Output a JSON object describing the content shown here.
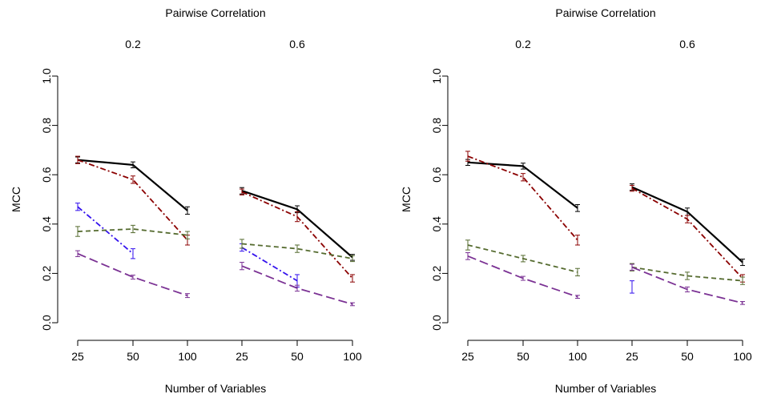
{
  "figure": {
    "panel_title": "Pairwise Correlation",
    "ylabel": "MCC",
    "xlabel": "Number of Variables"
  },
  "chart_data": [
    {
      "type": "line",
      "title": "Pairwise Correlation",
      "xlabel": "Number of Variables",
      "ylabel": "MCC",
      "ylim": [
        0,
        1
      ],
      "yticks": [
        "0.0",
        "0.2",
        "0.4",
        "0.6",
        "0.8",
        "1.0"
      ],
      "grid": false,
      "groups": [
        {
          "label": "0.2",
          "x": [
            "25",
            "50",
            "100"
          ]
        },
        {
          "label": "0.6",
          "x": [
            "25",
            "50",
            "100"
          ]
        }
      ],
      "series": [
        {
          "color": "#000000",
          "dash": "solid",
          "width": 2.2,
          "values": [
            [
              0.66,
              0.64,
              0.455
            ],
            [
              0.535,
              0.46,
              0.265
            ]
          ],
          "err": [
            [
              0.012,
              0.012,
              0.015
            ],
            [
              0.013,
              0.014,
              0.012
            ]
          ]
        },
        {
          "color": "#8b0000",
          "dash": "dashdot",
          "width": 1.8,
          "values": [
            [
              0.66,
              0.58,
              0.335
            ],
            [
              0.53,
              0.43,
              0.18
            ]
          ],
          "err": [
            [
              0.015,
              0.015,
              0.02
            ],
            [
              0.012,
              0.02,
              0.015
            ]
          ]
        },
        {
          "color": "#3311ee",
          "dash": "dashdot",
          "width": 1.8,
          "values": [
            [
              0.47,
              0.28,
              null
            ],
            [
              0.305,
              0.17,
              null
            ]
          ],
          "err": [
            [
              0.015,
              0.02,
              null
            ],
            [
              0.015,
              0.025,
              null
            ]
          ]
        },
        {
          "color": "#556b2f",
          "dash": "dashed",
          "width": 1.8,
          "values": [
            [
              0.37,
              0.38,
              0.355
            ],
            [
              0.32,
              0.3,
              0.26
            ]
          ],
          "err": [
            [
              0.02,
              0.015,
              0.015
            ],
            [
              0.018,
              0.015,
              0.012
            ]
          ]
        },
        {
          "color": "#7b3294",
          "dash": "longdash",
          "width": 1.8,
          "values": [
            [
              0.28,
              0.185,
              0.11
            ],
            [
              0.23,
              0.14,
              0.075
            ]
          ],
          "err": [
            [
              0.012,
              0.008,
              0.008
            ],
            [
              0.015,
              0.012,
              0.006
            ]
          ]
        }
      ]
    },
    {
      "type": "line",
      "title": "Pairwise Correlation",
      "xlabel": "Number of Variables",
      "ylabel": "MCC",
      "ylim": [
        0,
        1
      ],
      "yticks": [
        "0.0",
        "0.2",
        "0.4",
        "0.6",
        "0.8",
        "1.0"
      ],
      "grid": false,
      "groups": [
        {
          "label": "0.2",
          "x": [
            "25",
            "50",
            "100"
          ]
        },
        {
          "label": "0.6",
          "x": [
            "25",
            "50",
            "100"
          ]
        }
      ],
      "series": [
        {
          "color": "#000000",
          "dash": "solid",
          "width": 2.2,
          "values": [
            [
              0.65,
              0.635,
              0.465
            ],
            [
              0.55,
              0.45,
              0.245
            ]
          ],
          "err": [
            [
              0.012,
              0.012,
              0.014
            ],
            [
              0.013,
              0.015,
              0.013
            ]
          ]
        },
        {
          "color": "#8b0000",
          "dash": "dashdot",
          "width": 1.8,
          "values": [
            [
              0.675,
              0.59,
              0.335
            ],
            [
              0.545,
              0.42,
              0.18
            ]
          ],
          "err": [
            [
              0.02,
              0.015,
              0.02
            ],
            [
              0.012,
              0.015,
              0.015
            ]
          ]
        },
        {
          "color": "#3311ee",
          "dash": "dashdot",
          "width": 1.8,
          "values": [
            [
              null,
              null,
              null
            ],
            [
              0.145,
              null,
              null
            ]
          ],
          "err": [
            [
              null,
              null,
              null
            ],
            [
              0.025,
              null,
              null
            ]
          ]
        },
        {
          "color": "#556b2f",
          "dash": "dashed",
          "width": 1.8,
          "values": [
            [
              0.315,
              0.26,
              0.205
            ],
            [
              0.225,
              0.19,
              0.17
            ]
          ],
          "err": [
            [
              0.02,
              0.013,
              0.015
            ],
            [
              0.015,
              0.015,
              0.015
            ]
          ]
        },
        {
          "color": "#7b3294",
          "dash": "longdash",
          "width": 1.8,
          "values": [
            [
              0.27,
              0.18,
              0.105
            ],
            [
              0.225,
              0.135,
              0.08
            ]
          ],
          "err": [
            [
              0.014,
              0.008,
              0.006
            ],
            [
              0.012,
              0.01,
              0.006
            ]
          ]
        }
      ]
    }
  ]
}
